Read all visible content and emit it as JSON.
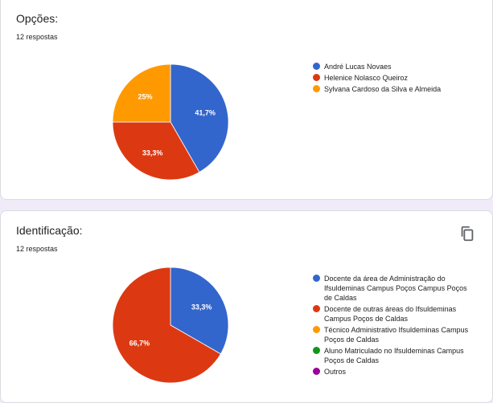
{
  "questions": [
    {
      "title": "Opções:",
      "responses": "12 respostas"
    },
    {
      "title": "Identificação:",
      "responses": "12 respostas",
      "copy_icon": "copy-icon"
    }
  ],
  "chart_data": [
    {
      "type": "pie",
      "title": "Opções:",
      "categories": [
        "André Lucas Novaes",
        "Helenice Nolasco Queiroz",
        "Sylvana Cardoso da Silva e Almeida"
      ],
      "values": [
        41.7,
        33.3,
        25
      ],
      "labels": [
        "41,7%",
        "33,3%",
        "25%"
      ],
      "colors": [
        "#3366cc",
        "#dc3912",
        "#ff9900"
      ],
      "legend_position": "right"
    },
    {
      "type": "pie",
      "title": "Identificação:",
      "categories": [
        "Docente da área de Administração do Ifsuldeminas Campus Poços Campus Poços de Caldas",
        "Docente de outras áreas do Ifsuldeminas Campus Poços de Caldas",
        "Técnico Administrativo Ifsuldeminas Campus Poços de Caldas",
        "Aluno Matriculado no Ifsuldeminas Campus Poços de Caldas",
        "Outros"
      ],
      "values": [
        33.3,
        66.7,
        0,
        0,
        0
      ],
      "labels": [
        "33,3%",
        "66,7%",
        "",
        "",
        ""
      ],
      "colors": [
        "#3366cc",
        "#dc3912",
        "#ff9900",
        "#109618",
        "#990099"
      ],
      "legend_position": "right"
    }
  ]
}
